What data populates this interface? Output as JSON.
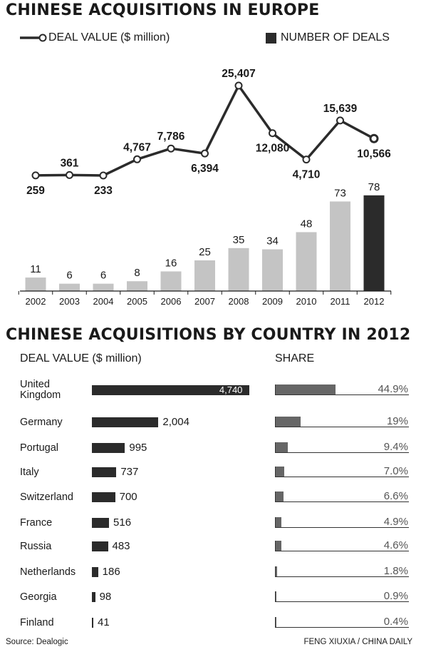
{
  "titles": {
    "main": "CHINESE ACQUISITIONS IN EUROPE",
    "country": "CHINESE ACQUISITIONS BY COUNTRY IN 2012"
  },
  "legend": {
    "deal_value": "DEAL VALUE",
    "deal_value_unit": "($ million)",
    "number_of_deals": "NUMBER OF DEALS"
  },
  "country_headers": {
    "deal_value": "DEAL VALUE",
    "deal_value_unit": "($ million)",
    "share": "SHARE"
  },
  "footer": {
    "source": "Source: Dealogic",
    "credit": "FENG XIUXIA / CHINA DAILY"
  },
  "colors": {
    "dark": "#2b2b2b",
    "bar_light": "#c4c4c4",
    "share_bar": "#666666"
  },
  "chart_data": [
    {
      "type": "line",
      "name": "deal-value",
      "series": [
        {
          "name": "DEAL VALUE ($ million)",
          "values": [
            259,
            361,
            233,
            4767,
            7786,
            6394,
            25407,
            12080,
            4710,
            15639,
            10566
          ]
        }
      ],
      "x": [
        "2002",
        "2003",
        "2004",
        "2005",
        "2006",
        "2007",
        "2008",
        "2009",
        "2010",
        "2011",
        "2012"
      ],
      "labels": [
        "259",
        "361",
        "233",
        "4,767",
        "7,786",
        "6,394",
        "25,407",
        "12,080",
        "4,710",
        "15,639",
        "10,566"
      ],
      "label_pos": [
        "below",
        "above",
        "below",
        "above",
        "above",
        "below",
        "above",
        "below",
        "below",
        "above",
        "below"
      ]
    },
    {
      "type": "bar",
      "name": "number-of-deals",
      "categories": [
        "2002",
        "2003",
        "2004",
        "2005",
        "2006",
        "2007",
        "2008",
        "2009",
        "2010",
        "2011",
        "2012"
      ],
      "series": [
        {
          "name": "NUMBER OF DEALS",
          "values": [
            11,
            6,
            6,
            8,
            16,
            25,
            35,
            34,
            48,
            73,
            78
          ]
        }
      ],
      "highlight_index": 10
    },
    {
      "type": "bar",
      "name": "deal-value-by-country-2012",
      "categories": [
        "United Kingdom",
        "Germany",
        "Portugal",
        "Italy",
        "Switzerland",
        "France",
        "Russia",
        "Netherlands",
        "Georgia",
        "Finland"
      ],
      "series": [
        {
          "name": "DEAL VALUE ($ million)",
          "values": [
            4740,
            2004,
            995,
            737,
            700,
            516,
            483,
            186,
            98,
            41
          ],
          "labels": [
            "4,740",
            "2,004",
            "995",
            "737",
            "700",
            "516",
            "483",
            "186",
            "98",
            "41"
          ]
        },
        {
          "name": "SHARE",
          "values": [
            44.9,
            19,
            9.4,
            7.0,
            6.6,
            4.9,
            4.6,
            1.8,
            0.9,
            0.4
          ],
          "labels": [
            "44.9%",
            "19%",
            "9.4%",
            "7.0%",
            "6.6%",
            "4.9%",
            "4.6%",
            "1.8%",
            "0.9%",
            "0.4%"
          ]
        }
      ]
    }
  ]
}
